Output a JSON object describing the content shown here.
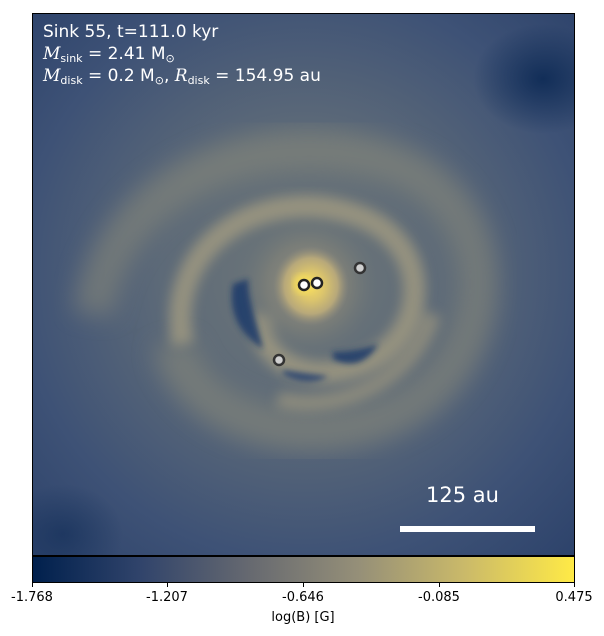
{
  "annotation": {
    "line1": "Sink 55, t=111.0 kyr",
    "msink_prefix": "M",
    "msink_sub": "sink",
    "msink_value": " = 2.41 M",
    "msink_sun": "⊙",
    "mdisk_prefix": "M",
    "mdisk_sub": "disk",
    "mdisk_value": " = 0.2 M",
    "mdisk_sun": "⊙",
    "rdisk_sep": ", ",
    "rdisk_prefix": "R",
    "rdisk_sub": "disk",
    "rdisk_value": " = 154.95 au"
  },
  "scale_bar": {
    "label": "125 au"
  },
  "colorbar": {
    "label": "log(B) [G]",
    "ticks": [
      "-1.768",
      "-1.207",
      "-0.646",
      "-0.085",
      "0.475"
    ],
    "colors": [
      "#00204d",
      "#31446b",
      "#666970",
      "#958f78",
      "#cbba69",
      "#ffea46"
    ]
  }
}
